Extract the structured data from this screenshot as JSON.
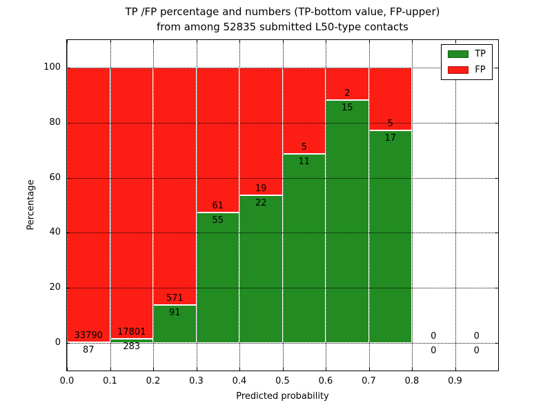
{
  "chart_data": {
    "type": "bar",
    "stacked": true,
    "percent_stacked": true,
    "title_line1": "TP /FP percentage and numbers (TP-bottom value, FP-upper)",
    "title_line2": "from among 52835 submitted L50-type contacts",
    "xlabel": "Predicted probability",
    "ylabel": "Percentage",
    "x_tick_labels": [
      "0.0",
      "0.1",
      "0.2",
      "0.3",
      "0.4",
      "0.5",
      "0.6",
      "0.7",
      "0.8",
      "0.9"
    ],
    "y_tick_labels": [
      "0",
      "20",
      "40",
      "60",
      "80",
      "100"
    ],
    "y_tick_values": [
      0,
      20,
      40,
      60,
      80,
      100
    ],
    "xlim": [
      0.0,
      1.0
    ],
    "ylim": [
      -10,
      110
    ],
    "bin_width": 0.1,
    "grid": "dotted",
    "legend_position": "upper-right",
    "total_contacts": 52835,
    "bins": [
      {
        "range": "0.0-0.1",
        "tp": 87,
        "fp": 33790
      },
      {
        "range": "0.1-0.2",
        "tp": 283,
        "fp": 17801
      },
      {
        "range": "0.2-0.3",
        "tp": 91,
        "fp": 571
      },
      {
        "range": "0.3-0.4",
        "tp": 55,
        "fp": 61
      },
      {
        "range": "0.4-0.5",
        "tp": 22,
        "fp": 19
      },
      {
        "range": "0.5-0.6",
        "tp": 11,
        "fp": 5
      },
      {
        "range": "0.6-0.7",
        "tp": 15,
        "fp": 2
      },
      {
        "range": "0.7-0.8",
        "tp": 17,
        "fp": 5
      },
      {
        "range": "0.8-0.9",
        "tp": 0,
        "fp": 0
      },
      {
        "range": "0.9-1.0",
        "tp": 0,
        "fp": 0
      }
    ],
    "legend": [
      {
        "label": "TP",
        "color": "#228B22"
      },
      {
        "label": "FP",
        "color": "#FC1D15"
      }
    ]
  }
}
